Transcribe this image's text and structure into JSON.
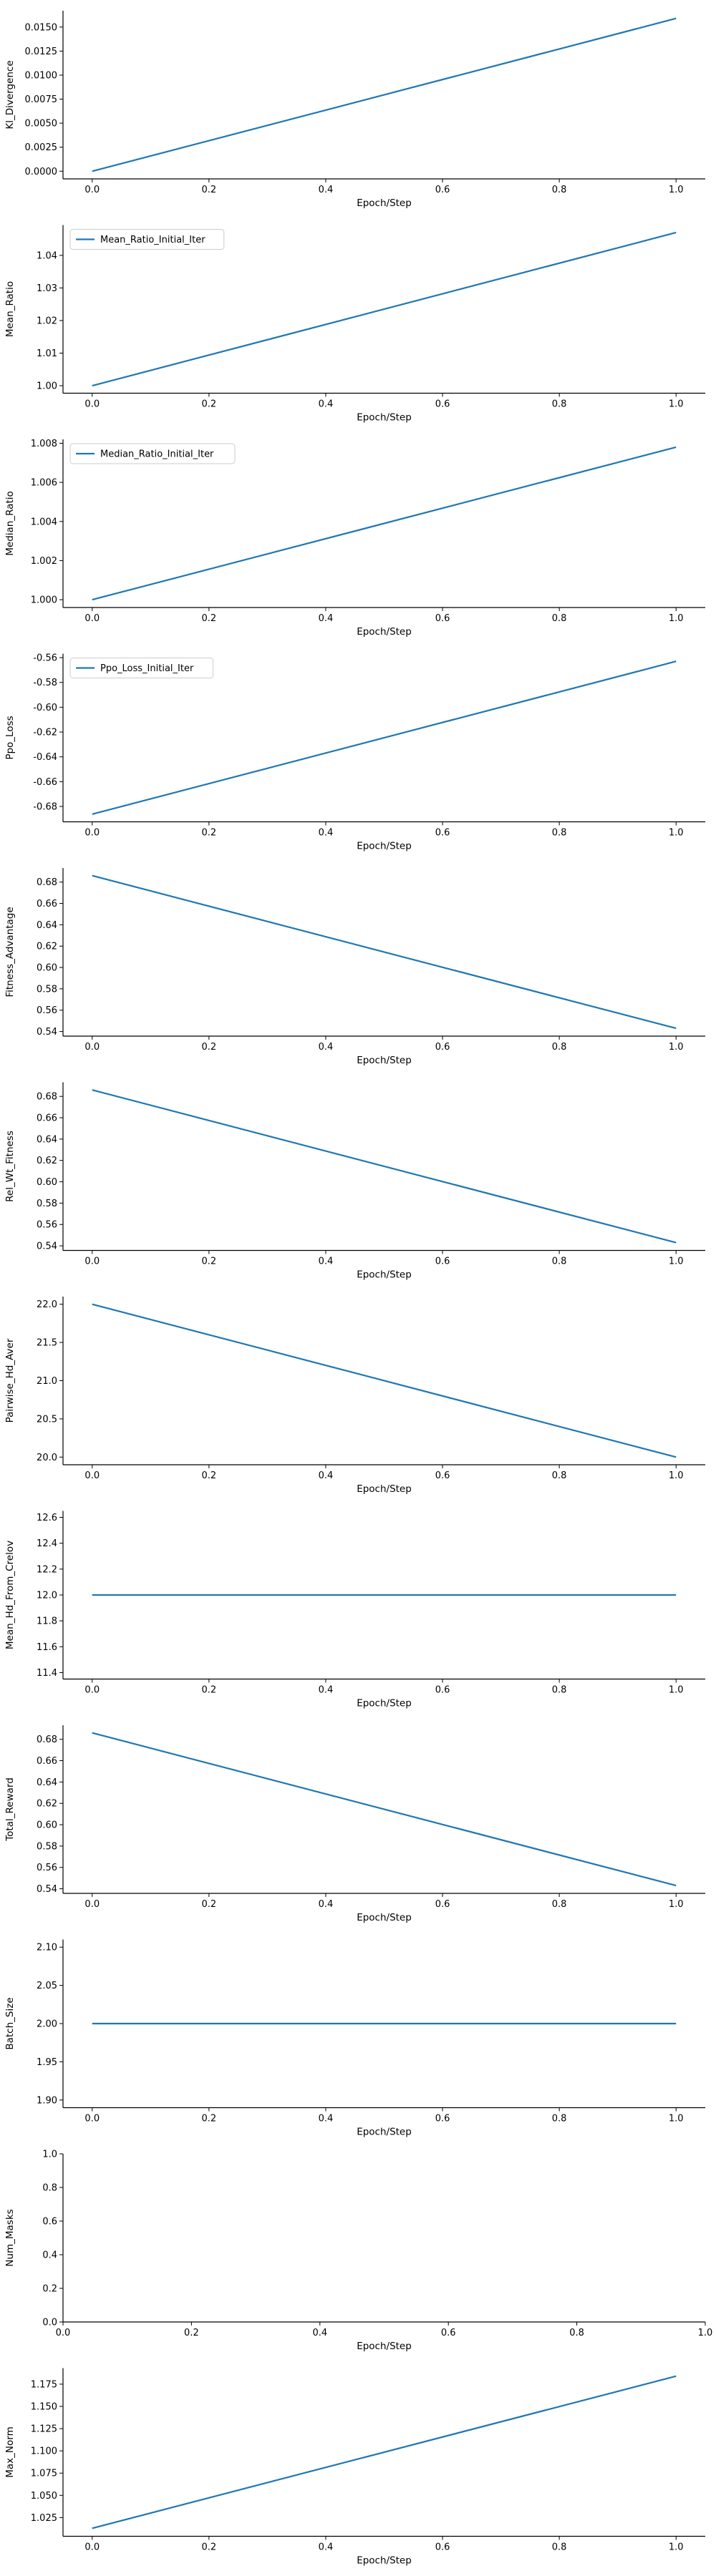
{
  "colors": {
    "series": "#1f77b4",
    "axis": "#000000",
    "background": "#ffffff"
  },
  "chart_data": [
    {
      "type": "line",
      "xlabel": "Epoch/Step",
      "ylabel": "Kl_Divergence",
      "xlim": [
        -0.05,
        1.05
      ],
      "ylim": [
        -0.0008,
        0.0167
      ],
      "xticks": [
        "0.0",
        "0.2",
        "0.4",
        "0.6",
        "0.8",
        "1.0"
      ],
      "yticks": [
        "0.0000",
        "0.0025",
        "0.0050",
        "0.0075",
        "0.0100",
        "0.0125",
        "0.0150"
      ],
      "series": [
        {
          "x": [
            0,
            1
          ],
          "y": [
            0.0,
            0.0159
          ]
        }
      ],
      "legend": null,
      "grid": false
    },
    {
      "type": "line",
      "xlabel": "Epoch/Step",
      "ylabel": "Mean_Ratio",
      "xlim": [
        -0.05,
        1.05
      ],
      "ylim": [
        0.9977,
        1.0493
      ],
      "xticks": [
        "0.0",
        "0.2",
        "0.4",
        "0.6",
        "0.8",
        "1.0"
      ],
      "yticks": [
        "1.00",
        "1.01",
        "1.02",
        "1.03",
        "1.04"
      ],
      "series": [
        {
          "name": "Mean_Ratio_Initial_Iter",
          "x": [
            0,
            1
          ],
          "y": [
            1.0,
            1.047
          ]
        }
      ],
      "legend": "upper left",
      "grid": false
    },
    {
      "type": "line",
      "xlabel": "Epoch/Step",
      "ylabel": "Median_Ratio",
      "xlim": [
        -0.05,
        1.05
      ],
      "ylim": [
        0.9996,
        1.0082
      ],
      "xticks": [
        "0.0",
        "0.2",
        "0.4",
        "0.6",
        "0.8",
        "1.0"
      ],
      "yticks": [
        "1.000",
        "1.002",
        "1.004",
        "1.006",
        "1.008"
      ],
      "series": [
        {
          "name": "Median_Ratio_Initial_Iter",
          "x": [
            0,
            1
          ],
          "y": [
            1.0,
            1.0078
          ]
        }
      ],
      "legend": "upper left",
      "grid": false
    },
    {
      "type": "line",
      "xlabel": "Epoch/Step",
      "ylabel": "Ppo_Loss",
      "xlim": [
        -0.05,
        1.05
      ],
      "ylim": [
        -0.6924,
        -0.5568
      ],
      "xticks": [
        "0.0",
        "0.2",
        "0.4",
        "0.6",
        "0.8",
        "1.0"
      ],
      "yticks": [
        "-0.68",
        "-0.66",
        "-0.64",
        "-0.62",
        "-0.60",
        "-0.58",
        "-0.56"
      ],
      "series": [
        {
          "name": "Ppo_Loss_Initial_Iter",
          "x": [
            0,
            1
          ],
          "y": [
            -0.6862,
            -0.563
          ]
        }
      ],
      "legend": "upper left",
      "grid": false
    },
    {
      "type": "line",
      "xlabel": "Epoch/Step",
      "ylabel": "Fitness_Advantage",
      "xlim": [
        -0.05,
        1.05
      ],
      "ylim": [
        0.5357,
        0.6932
      ],
      "xticks": [
        "0.0",
        "0.2",
        "0.4",
        "0.6",
        "0.8",
        "1.0"
      ],
      "yticks": [
        "0.54",
        "0.56",
        "0.58",
        "0.60",
        "0.62",
        "0.64",
        "0.66",
        "0.68"
      ],
      "series": [
        {
          "x": [
            0,
            1
          ],
          "y": [
            0.686,
            0.543
          ]
        }
      ],
      "legend": null,
      "grid": false
    },
    {
      "type": "line",
      "xlabel": "Epoch/Step",
      "ylabel": "Rel_Wt_Fitness",
      "xlim": [
        -0.05,
        1.05
      ],
      "ylim": [
        0.5357,
        0.6932
      ],
      "xticks": [
        "0.0",
        "0.2",
        "0.4",
        "0.6",
        "0.8",
        "1.0"
      ],
      "yticks": [
        "0.54",
        "0.56",
        "0.58",
        "0.60",
        "0.62",
        "0.64",
        "0.66",
        "0.68"
      ],
      "series": [
        {
          "x": [
            0,
            1
          ],
          "y": [
            0.686,
            0.543
          ]
        }
      ],
      "legend": null,
      "grid": false
    },
    {
      "type": "line",
      "xlabel": "Epoch/Step",
      "ylabel": "Pairwise_Hd_Aver",
      "xlim": [
        -0.05,
        1.05
      ],
      "ylim": [
        19.9,
        22.1
      ],
      "xticks": [
        "0.0",
        "0.2",
        "0.4",
        "0.6",
        "0.8",
        "1.0"
      ],
      "yticks": [
        "20.0",
        "20.5",
        "21.0",
        "21.5",
        "22.0"
      ],
      "series": [
        {
          "x": [
            0,
            1
          ],
          "y": [
            22.0,
            20.0
          ]
        }
      ],
      "legend": null,
      "grid": false
    },
    {
      "type": "line",
      "xlabel": "Epoch/Step",
      "ylabel": "Mean_Hd_From_Crelov",
      "xlim": [
        -0.05,
        1.05
      ],
      "ylim": [
        11.35,
        12.65
      ],
      "xticks": [
        "0.0",
        "0.2",
        "0.4",
        "0.6",
        "0.8",
        "1.0"
      ],
      "yticks": [
        "11.4",
        "11.6",
        "11.8",
        "12.0",
        "12.2",
        "12.4",
        "12.6"
      ],
      "series": [
        {
          "x": [
            0,
            1
          ],
          "y": [
            12.0,
            12.0
          ]
        }
      ],
      "legend": null,
      "grid": false
    },
    {
      "type": "line",
      "xlabel": "Epoch/Step",
      "ylabel": "Total_Reward",
      "xlim": [
        -0.05,
        1.05
      ],
      "ylim": [
        0.5357,
        0.6932
      ],
      "xticks": [
        "0.0",
        "0.2",
        "0.4",
        "0.6",
        "0.8",
        "1.0"
      ],
      "yticks": [
        "0.54",
        "0.56",
        "0.58",
        "0.60",
        "0.62",
        "0.64",
        "0.66",
        "0.68"
      ],
      "series": [
        {
          "x": [
            0,
            1
          ],
          "y": [
            0.686,
            0.543
          ]
        }
      ],
      "legend": null,
      "grid": false
    },
    {
      "type": "line",
      "xlabel": "Epoch/Step",
      "ylabel": "Batch_Size",
      "xlim": [
        -0.05,
        1.05
      ],
      "ylim": [
        1.89,
        2.11
      ],
      "xticks": [
        "0.0",
        "0.2",
        "0.4",
        "0.6",
        "0.8",
        "1.0"
      ],
      "yticks": [
        "1.90",
        "1.95",
        "2.00",
        "2.05",
        "2.10"
      ],
      "series": [
        {
          "x": [
            0,
            1
          ],
          "y": [
            2.0,
            2.0
          ]
        }
      ],
      "legend": null,
      "grid": false
    },
    {
      "type": "line",
      "xlabel": "Epoch/Step",
      "ylabel": "Num_Masks",
      "xlim": [
        0.0,
        1.0
      ],
      "ylim": [
        0.0,
        1.0
      ],
      "xticks": [
        "0.0",
        "0.2",
        "0.4",
        "0.6",
        "0.8",
        "1.0"
      ],
      "yticks": [
        "0.0",
        "0.2",
        "0.4",
        "0.6",
        "0.8",
        "1.0"
      ],
      "series": [],
      "legend": null,
      "grid": false
    },
    {
      "type": "line",
      "xlabel": "Epoch/Step",
      "ylabel": "Max_Norm",
      "xlim": [
        -0.05,
        1.05
      ],
      "ylim": [
        1.004,
        1.193
      ],
      "xticks": [
        "0.0",
        "0.2",
        "0.4",
        "0.6",
        "0.8",
        "1.0"
      ],
      "yticks": [
        "1.025",
        "1.050",
        "1.075",
        "1.100",
        "1.125",
        "1.150",
        "1.175"
      ],
      "series": [
        {
          "x": [
            0,
            1
          ],
          "y": [
            1.013,
            1.184
          ]
        }
      ],
      "legend": null,
      "grid": false
    }
  ]
}
